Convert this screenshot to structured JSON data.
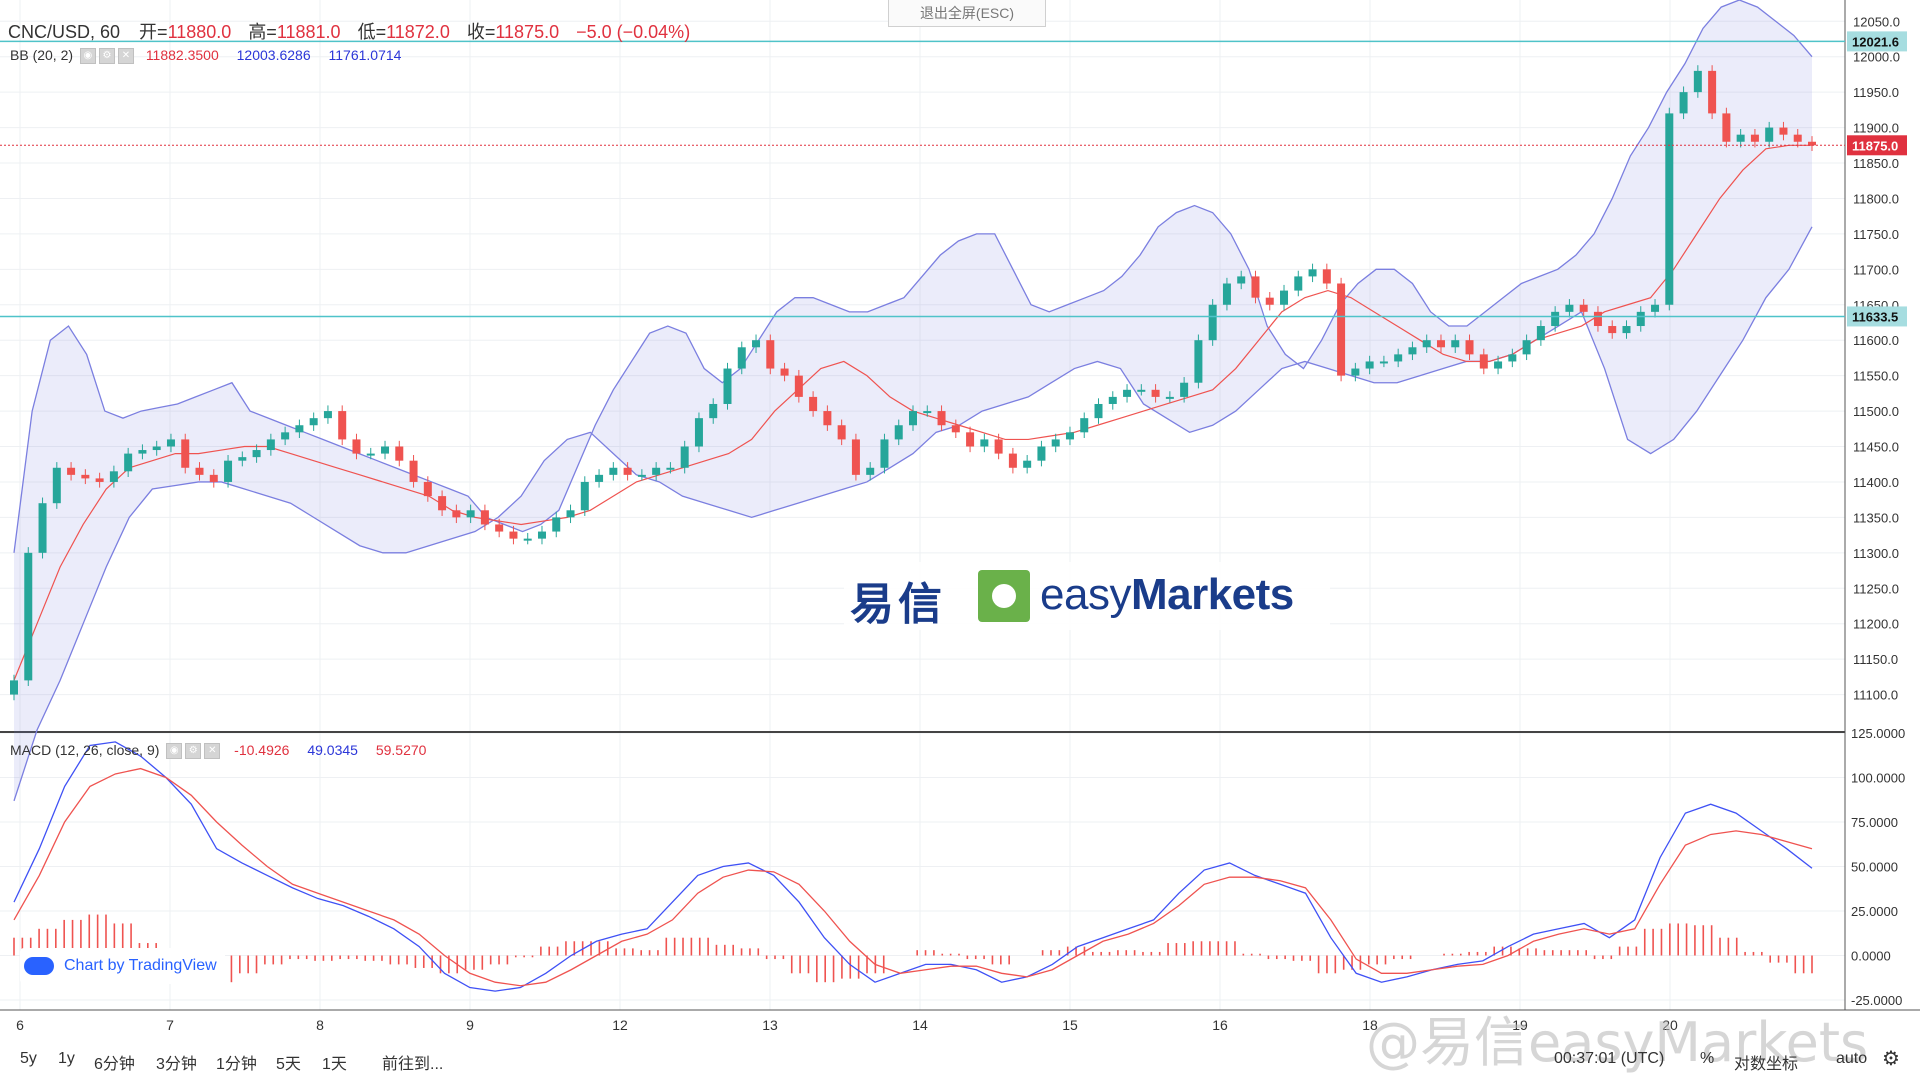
{
  "header": {
    "symbol": "CNC/USD, 60",
    "open_label": "开=",
    "open": "11880.0",
    "high_label": "高=",
    "high": "11881.0",
    "low_label": "低=",
    "low": "11872.0",
    "close_label": "收=",
    "close": "11875.0",
    "change": "−5.0 (−0.04%)"
  },
  "fullscreen_exit": "退出全屏(ESC)",
  "bb": {
    "label": "BB (20, 2)",
    "basis": "11882.3500",
    "upper": "12003.6286",
    "lower": "11761.0714"
  },
  "macd": {
    "label": "MACD (12, 26, close, 9)",
    "hist": "-10.4926",
    "macd": "49.0345",
    "signal": "59.5270"
  },
  "price_tags": {
    "upper_line": "12021.6",
    "last": "11875.0",
    "lower_line": "11633.5"
  },
  "brand": {
    "cn": "易信",
    "en_light": "easy",
    "en_bold": "Markets"
  },
  "credit": "Chart by TradingView",
  "watermark": "@易信easyMarkets",
  "bottom_bar": {
    "ranges": [
      "5y",
      "1y",
      "6分钟",
      "3分钟",
      "1分钟",
      "5天",
      "1天"
    ],
    "goto": "前往到...",
    "time": "00:37:01 (UTC)",
    "percent": "%",
    "log": "对数坐标",
    "auto": "auto",
    "settings_icon": "gear-icon"
  },
  "colors": {
    "up": "#26a69a",
    "down": "#ef5350",
    "bb_band": "#7b7fe0",
    "bb_basis": "#ef5350",
    "hline": "#4fc3c9",
    "last_price": "#e0313f",
    "macd_line": "#3f51f5",
    "signal_line": "#ef5350",
    "hist": "#ef5350"
  },
  "chart_data": [
    {
      "type": "candlestick",
      "title": "CNC/USD, 60",
      "x_ticks": [
        "6",
        "7",
        "8",
        "9",
        "12",
        "13",
        "14",
        "15",
        "16",
        "18",
        "19",
        "20"
      ],
      "ylim": [
        11050,
        12080
      ],
      "y_ticks": [
        11100,
        11150,
        11200,
        11250,
        11300,
        11350,
        11400,
        11450,
        11500,
        11550,
        11600,
        11650,
        11700,
        11750,
        11800,
        11850,
        11900,
        11950,
        12000,
        12050
      ],
      "horizontal_lines": [
        12021.6,
        11633.5
      ],
      "last_price": 11875.0,
      "close_series": [
        11120,
        11300,
        11370,
        11420,
        11410,
        11405,
        11400,
        11415,
        11440,
        11445,
        11450,
        11460,
        11420,
        11410,
        11400,
        11430,
        11435,
        11445,
        11460,
        11470,
        11480,
        11490,
        11500,
        11460,
        11440,
        11440,
        11450,
        11430,
        11400,
        11380,
        11360,
        11350,
        11360,
        11340,
        11330,
        11320,
        11320,
        11330,
        11350,
        11360,
        11400,
        11410,
        11420,
        11410,
        11410,
        11420,
        11420,
        11450,
        11490,
        11510,
        11560,
        11590,
        11600,
        11560,
        11550,
        11520,
        11500,
        11480,
        11460,
        11410,
        11420,
        11460,
        11480,
        11500,
        11500,
        11480,
        11470,
        11450,
        11460,
        11440,
        11420,
        11430,
        11450,
        11460,
        11470,
        11490,
        11510,
        11520,
        11530,
        11530,
        11520,
        11520,
        11540,
        11600,
        11650,
        11680,
        11690,
        11660,
        11650,
        11670,
        11690,
        11700,
        11680,
        11550,
        11560,
        11570,
        11570,
        11580,
        11590,
        11600,
        11590,
        11600,
        11580,
        11560,
        11570,
        11580,
        11600,
        11620,
        11640,
        11650,
        11640,
        11620,
        11610,
        11620,
        11640,
        11650,
        11920,
        11950,
        11980,
        11920,
        11880,
        11890,
        11880,
        11900,
        11890,
        11880,
        11875
      ],
      "bb_upper_series": [
        11300,
        11500,
        11600,
        11620,
        11580,
        11500,
        11490,
        11500,
        11505,
        11510,
        11520,
        11530,
        11540,
        11500,
        11490,
        11480,
        11470,
        11460,
        11450,
        11440,
        11430,
        11420,
        11410,
        11400,
        11390,
        11380,
        11350,
        11340,
        11330,
        11340,
        11360,
        11420,
        11480,
        11530,
        11570,
        11610,
        11620,
        11610,
        11560,
        11540,
        11560,
        11600,
        11640,
        11660,
        11660,
        11650,
        11640,
        11640,
        11650,
        11660,
        11690,
        11720,
        11740,
        11750,
        11750,
        11700,
        11650,
        11640,
        11650,
        11660,
        11670,
        11690,
        11720,
        11760,
        11780,
        11790,
        11780,
        11750,
        11700,
        11620,
        11580,
        11560,
        11600,
        11650,
        11680,
        11700,
        11700,
        11680,
        11640,
        11620,
        11620,
        11640,
        11660,
        11680,
        11690,
        11700,
        11720,
        11750,
        11800,
        11860,
        11900,
        11950,
        11990,
        12040,
        12070,
        12080,
        12070,
        12050,
        12030,
        12000
      ],
      "bb_basis_series": [
        11120,
        11200,
        11280,
        11340,
        11390,
        11420,
        11430,
        11440,
        11440,
        11445,
        11450,
        11450,
        11440,
        11430,
        11420,
        11410,
        11400,
        11390,
        11380,
        11360,
        11350,
        11345,
        11340,
        11345,
        11350,
        11360,
        11380,
        11400,
        11410,
        11420,
        11430,
        11440,
        11460,
        11500,
        11530,
        11560,
        11570,
        11550,
        11520,
        11500,
        11490,
        11480,
        11470,
        11460,
        11460,
        11465,
        11470,
        11480,
        11490,
        11500,
        11510,
        11520,
        11530,
        11560,
        11600,
        11640,
        11660,
        11670,
        11660,
        11640,
        11620,
        11600,
        11580,
        11570,
        11570,
        11580,
        11600,
        11610,
        11620,
        11640,
        11650,
        11660,
        11700,
        11750,
        11800,
        11840,
        11870,
        11875,
        11875
      ],
      "bb_lower_series": [
        10950,
        11050,
        11120,
        11200,
        11280,
        11350,
        11390,
        11395,
        11400,
        11400,
        11390,
        11380,
        11370,
        11350,
        11330,
        11310,
        11300,
        11300,
        11310,
        11320,
        11330,
        11350,
        11380,
        11430,
        11460,
        11470,
        11440,
        11410,
        11400,
        11380,
        11370,
        11360,
        11350,
        11360,
        11370,
        11380,
        11390,
        11400,
        11420,
        11440,
        11470,
        11480,
        11500,
        11510,
        11520,
        11540,
        11560,
        11570,
        11560,
        11510,
        11490,
        11470,
        11480,
        11500,
        11530,
        11560,
        11570,
        11560,
        11550,
        11540,
        11540,
        11550,
        11560,
        11570,
        11570,
        11580,
        11600,
        11620,
        11640,
        11560,
        11460,
        11440,
        11460,
        11500,
        11550,
        11600,
        11660,
        11700,
        11760
      ]
    },
    {
      "type": "macd",
      "title": "MACD (12, 26, close, 9)",
      "ylim": [
        -25,
        125
      ],
      "y_ticks": [
        -25,
        0,
        25,
        50,
        75,
        100,
        125
      ],
      "macd_series": [
        30,
        60,
        95,
        118,
        120,
        112,
        100,
        85,
        60,
        52,
        45,
        38,
        32,
        28,
        22,
        15,
        5,
        -10,
        -18,
        -20,
        -18,
        -10,
        0,
        8,
        12,
        15,
        30,
        45,
        50,
        52,
        45,
        30,
        10,
        -5,
        -15,
        -10,
        -5,
        -5,
        -8,
        -15,
        -12,
        -5,
        5,
        10,
        15,
        20,
        35,
        48,
        52,
        45,
        40,
        35,
        10,
        -10,
        -15,
        -12,
        -8,
        -5,
        -3,
        5,
        12,
        15,
        18,
        10,
        20,
        55,
        80,
        85,
        80,
        70,
        60,
        49
      ],
      "signal_series": [
        20,
        45,
        75,
        95,
        102,
        105,
        100,
        90,
        75,
        62,
        50,
        40,
        35,
        30,
        25,
        20,
        12,
        0,
        -10,
        -15,
        -17,
        -15,
        -8,
        0,
        8,
        12,
        20,
        35,
        44,
        48,
        47,
        40,
        25,
        8,
        -5,
        -10,
        -8,
        -6,
        -6,
        -10,
        -12,
        -8,
        0,
        8,
        12,
        18,
        28,
        40,
        44,
        44,
        42,
        38,
        20,
        -2,
        -10,
        -10,
        -8,
        -6,
        -5,
        0,
        8,
        12,
        15,
        12,
        15,
        40,
        62,
        68,
        70,
        68,
        64,
        60
      ],
      "hist_series": [
        10,
        15,
        20,
        23,
        18,
        7,
        0,
        -5,
        -15,
        -10,
        -5,
        -2,
        -3,
        -2,
        -3,
        -5,
        -7,
        -10,
        -8,
        -5,
        -1,
        5,
        8,
        8,
        4,
        3,
        10,
        10,
        6,
        4,
        -2,
        -10,
        -15,
        -13,
        -10,
        0,
        3,
        1,
        -2,
        -5,
        0,
        3,
        5,
        2,
        3,
        2,
        7,
        8,
        8,
        1,
        -2,
        -3,
        -10,
        -8,
        -5,
        -2,
        0,
        1,
        2,
        5,
        4,
        3,
        3,
        -2,
        5,
        15,
        18,
        17,
        10,
        2,
        -4,
        -10
      ]
    }
  ]
}
